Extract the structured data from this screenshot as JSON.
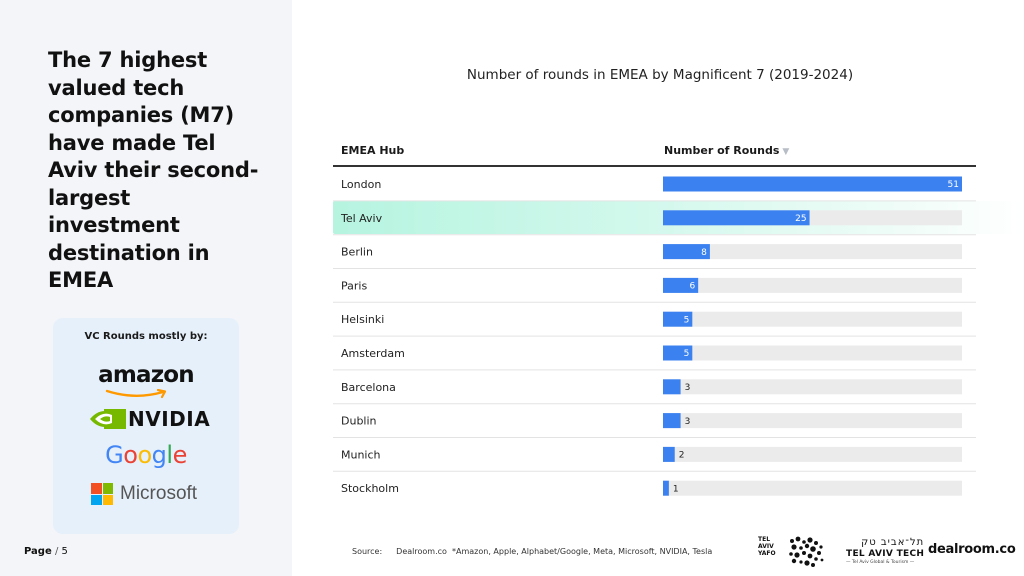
{
  "headline": "The 7 highest valued tech companies (M7) have made Tel Aviv their second-largest investment destination in EMEA",
  "vc_card": {
    "title": "VC Rounds mostly by:",
    "logos": [
      {
        "name": "amazon",
        "text": "amazon",
        "icon": "amazon-smile-icon"
      },
      {
        "name": "nvidia",
        "text": "NVIDIA",
        "icon": "nvidia-eye-icon"
      },
      {
        "name": "google",
        "letters": [
          "G",
          "o",
          "o",
          "g",
          "l",
          "e"
        ],
        "colors": [
          "#4285f4",
          "#ea4335",
          "#fbbc05",
          "#4285f4",
          "#34a853",
          "#ea4335"
        ]
      },
      {
        "name": "microsoft",
        "text": "Microsoft",
        "icon": "microsoft-grid-icon",
        "colors": [
          "#f25022",
          "#7fba00",
          "#00a4ef",
          "#ffb900"
        ]
      }
    ]
  },
  "page": {
    "label": "Page",
    "separator": "/",
    "number": "5"
  },
  "source": {
    "label": "Source:",
    "provider": "Dealroom.co",
    "note": "*Amazon, Apple, Alphabet/Google, Meta, Microsoft, NVIDIA, Tesla"
  },
  "footer_logos": {
    "tel_aviv_city": [
      "TEL",
      "AVIV",
      "YAFO"
    ],
    "tel_aviv_tech_hebrew": "תל־אביב טק",
    "tel_aviv_tech": "TEL AVIV TECH",
    "tel_aviv_tech_sub": "— Tel Aviv Global & Tourism —",
    "dealroom": "dealroom.co"
  },
  "colors": {
    "bar": "#3b82f0",
    "track": "#ebebeb",
    "highlight": "#b6f4e0",
    "left_panel": "#f3f5f8",
    "card": "#e6f0fb"
  },
  "chart_data": {
    "type": "bar",
    "orientation": "horizontal",
    "title": "Number of rounds in EMEA by Magnificent 7 (2019-2024)",
    "columns": {
      "category": "EMEA Hub",
      "value": "Number of Rounds"
    },
    "sort": "descending",
    "sort_icon": "sort-down-icon",
    "categories": [
      "London",
      "Tel Aviv",
      "Berlin",
      "Paris",
      "Helsinki",
      "Amsterdam",
      "Barcelona",
      "Dublin",
      "Munich",
      "Stockholm"
    ],
    "values": [
      51,
      25,
      8,
      6,
      5,
      5,
      3,
      3,
      2,
      1
    ],
    "xlim": [
      0,
      51
    ],
    "highlighted": "Tel Aviv",
    "grid": false,
    "legend": false
  }
}
